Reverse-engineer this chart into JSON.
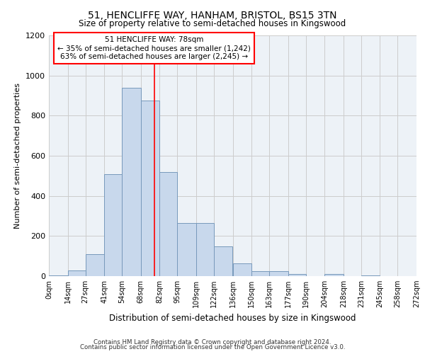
{
  "title1": "51, HENCLIFFE WAY, HANHAM, BRISTOL, BS15 3TN",
  "title2": "Size of property relative to semi-detached houses in Kingswood",
  "xlabel": "Distribution of semi-detached houses by size in Kingswood",
  "ylabel": "Number of semi-detached properties",
  "bin_labels": [
    "0sqm",
    "14sqm",
    "27sqm",
    "41sqm",
    "54sqm",
    "68sqm",
    "82sqm",
    "95sqm",
    "109sqm",
    "122sqm",
    "136sqm",
    "150sqm",
    "163sqm",
    "177sqm",
    "190sqm",
    "204sqm",
    "218sqm",
    "231sqm",
    "245sqm",
    "258sqm",
    "272sqm"
  ],
  "bar_values": [
    5,
    28,
    110,
    510,
    940,
    875,
    520,
    265,
    265,
    150,
    65,
    25,
    25,
    10,
    0,
    10,
    0,
    5,
    0
  ],
  "bin_edges": [
    0,
    14,
    27,
    41,
    54,
    68,
    82,
    95,
    109,
    122,
    136,
    150,
    163,
    177,
    190,
    204,
    218,
    231,
    245,
    258,
    272
  ],
  "bar_color": "#c8d8ec",
  "bar_edge_color": "#7799bb",
  "property_size": 78,
  "red_line_x": 78,
  "annotation_text1": "51 HENCLIFFE WAY: 78sqm",
  "annotation_text2": "← 35% of semi-detached houses are smaller (1,242)",
  "annotation_text3": "63% of semi-detached houses are larger (2,245) →",
  "annotation_box_color": "white",
  "annotation_box_edge": "red",
  "ylim": [
    0,
    1200
  ],
  "yticks": [
    0,
    200,
    400,
    600,
    800,
    1000,
    1200
  ],
  "grid_color": "#cccccc",
  "background_color": "#edf2f7",
  "footer1": "Contains HM Land Registry data © Crown copyright and database right 2024.",
  "footer2": "Contains public sector information licensed under the Open Government Licence v3.0."
}
